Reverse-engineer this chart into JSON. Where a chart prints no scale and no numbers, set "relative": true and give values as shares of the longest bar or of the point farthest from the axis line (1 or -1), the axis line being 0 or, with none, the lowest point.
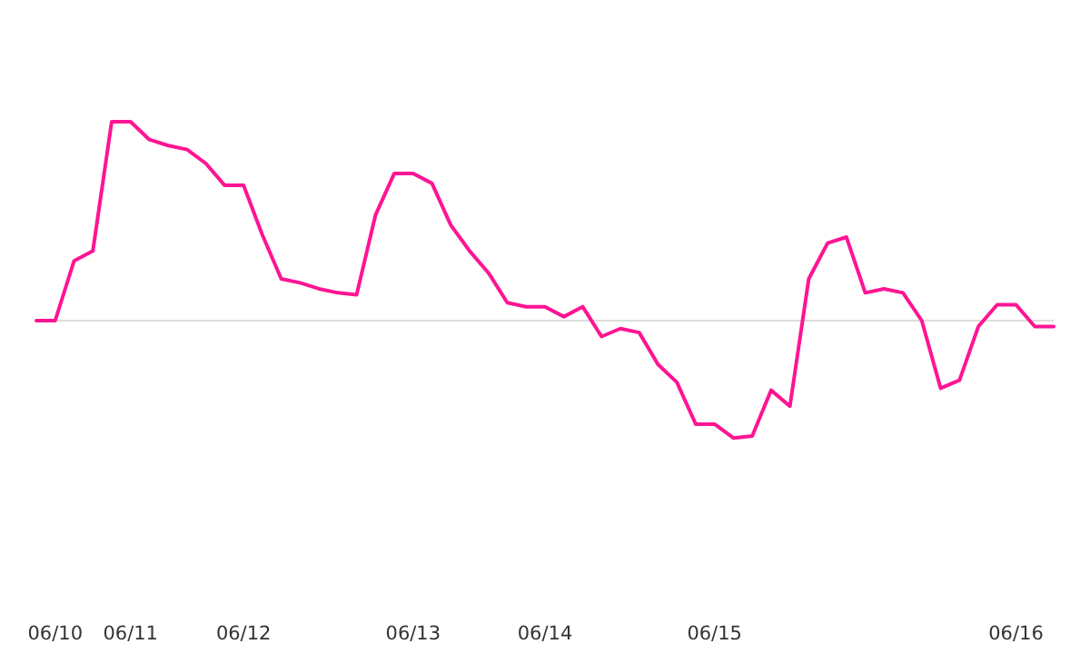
{
  "chart_data": {
    "type": "line",
    "relative": true,
    "categories": [
      null,
      "06/10",
      null,
      null,
      null,
      "06/11",
      null,
      null,
      null,
      null,
      null,
      "06/12",
      null,
      null,
      null,
      null,
      null,
      null,
      null,
      null,
      "06/13",
      null,
      null,
      null,
      null,
      null,
      null,
      "06/14",
      null,
      null,
      null,
      null,
      null,
      null,
      null,
      null,
      "06/15",
      null,
      null,
      null,
      null,
      null,
      null,
      null,
      null,
      null,
      null,
      null,
      null,
      null,
      null,
      null,
      "06/16",
      null,
      null
    ],
    "series": [
      {
        "color": "#ff1493",
        "values": [
          0,
          0,
          0.3,
          0.35,
          1,
          1,
          0.91,
          0.88,
          0.86,
          0.79,
          0.68,
          0.68,
          0.43,
          0.21,
          0.19,
          0.16,
          0.14,
          0.13,
          0.53,
          0.74,
          0.74,
          0.69,
          0.48,
          0.35,
          0.24,
          0.09,
          0.07,
          0.07,
          0.02,
          0.07,
          -0.08,
          -0.04,
          -0.06,
          -0.22,
          -0.31,
          -0.52,
          -0.52,
          -0.59,
          -0.58,
          -0.35,
          -0.43,
          0.21,
          0.39,
          0.42,
          0.14,
          0.16,
          0.14,
          0,
          -0.34,
          -0.3,
          -0.03,
          0.08,
          0.08,
          -0.03,
          -0.03
        ]
      }
    ],
    "marker": "none",
    "line_style": "solid"
  }
}
